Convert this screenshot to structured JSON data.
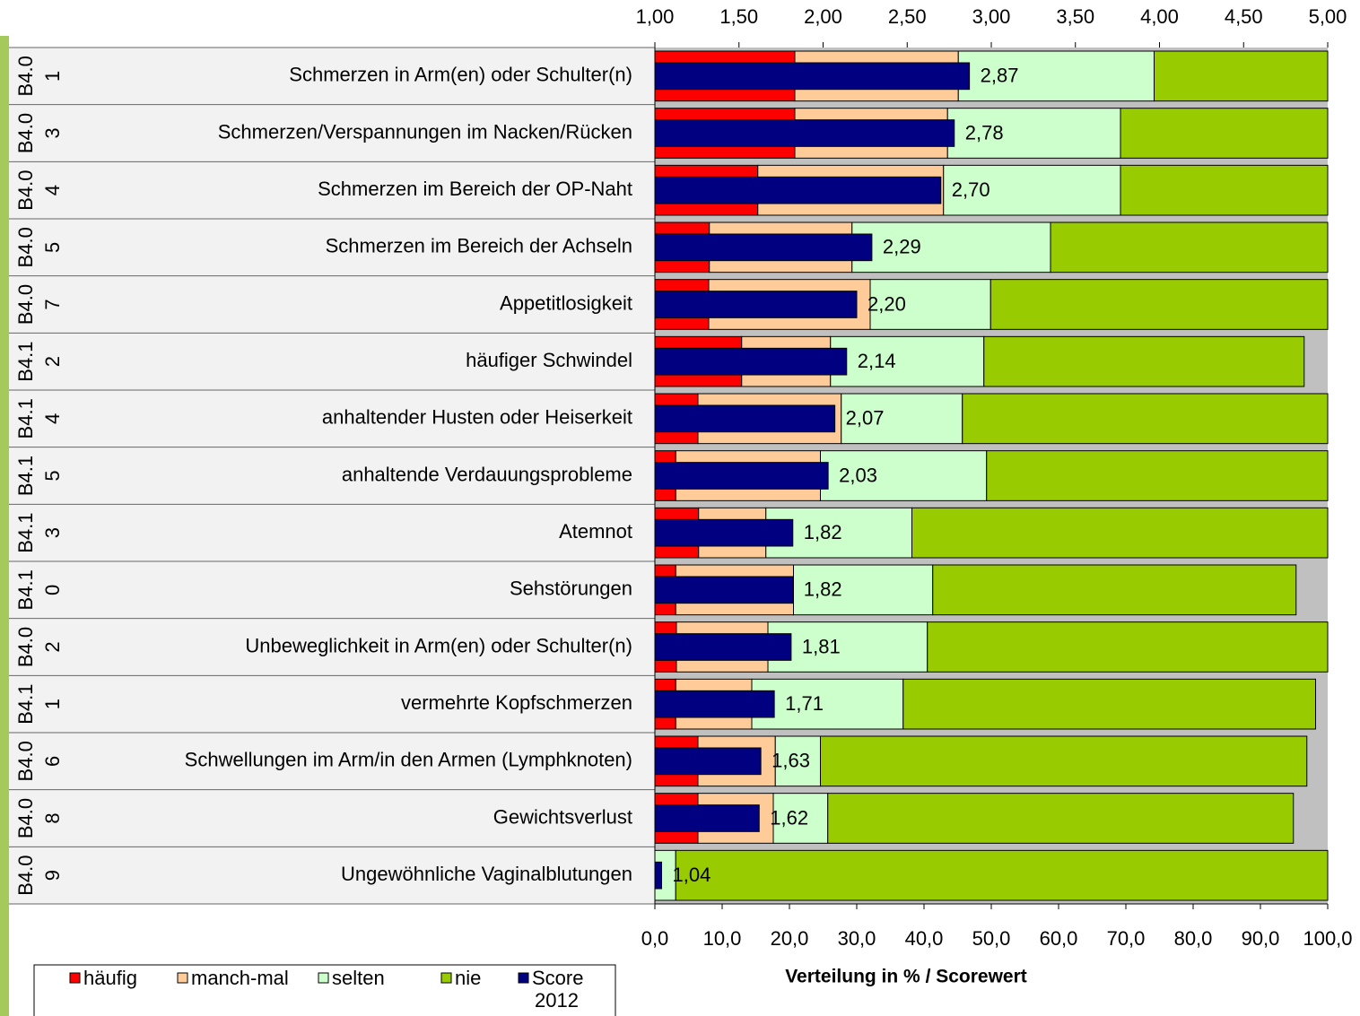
{
  "chart_data": {
    "type": "stacked-barh",
    "xlabel": "Verteilung in % / Scorewert",
    "groups": [
      "B4.0",
      "B4.0",
      "B4.0",
      "B4.0",
      "B4.0",
      "B4.1",
      "B4.1",
      "B4.1",
      "B4.1",
      "B4.1",
      "B4.0",
      "B4.1",
      "B4.0",
      "B4.0",
      "B4.0"
    ],
    "items": [
      "1",
      "3",
      "4",
      "5",
      "7",
      "2",
      "4",
      "5",
      "3",
      "0",
      "2",
      "1",
      "6",
      "8",
      "9"
    ],
    "categories": [
      "Schmerzen in Arm(en) oder Schulter(n)",
      "Schmerzen/Verspannungen im Nacken/Rücken",
      "Schmerzen im Bereich der OP-Naht",
      "Schmerzen im Bereich der Achseln",
      "Appetitlosigkeit",
      "häufiger Schwindel",
      "anhaltender Husten oder Heiserkeit",
      "anhaltende Verdauungsprobleme",
      "Atemnot",
      "Sehstörungen",
      "Unbeweglichkeit in Arm(en) oder Schulter(n)",
      "vermehrte Kopfschmerzen",
      "Schwellungen im Arm/in den Armen (Lymphknoten)",
      "Gewichtsverlust",
      "Ungewöhnliche Vaginalblutungen"
    ],
    "series": [
      {
        "name": "häufig",
        "color": "#ff0000",
        "values": [
          20.8,
          20.8,
          15.3,
          8.1,
          8.0,
          12.9,
          6.4,
          3.1,
          6.5,
          3.1,
          3.2,
          3.1,
          6.4,
          6.4,
          0
        ]
      },
      {
        "name": "manch-mal",
        "color": "#ffcc99",
        "values": [
          24.3,
          22.7,
          27.6,
          21.2,
          24.0,
          13.2,
          21.3,
          21.5,
          10.0,
          17.5,
          13.6,
          11.3,
          11.5,
          11.2,
          0
        ]
      },
      {
        "name": "selten",
        "color": "#ccffcc",
        "values": [
          29.1,
          25.7,
          26.3,
          29.5,
          17.9,
          22.8,
          18.0,
          24.7,
          21.7,
          20.7,
          23.7,
          22.5,
          6.7,
          8.1,
          3.1
        ]
      },
      {
        "name": "nie",
        "color": "#99cc00",
        "values": [
          25.8,
          30.8,
          30.8,
          41.2,
          50.1,
          47.6,
          54.3,
          50.7,
          61.8,
          54.0,
          59.5,
          61.3,
          72.3,
          69.2,
          96.9
        ]
      },
      {
        "name": "Score 2012",
        "color": "#000080",
        "axis": "x2",
        "values": [
          2.87,
          2.78,
          2.7,
          2.29,
          2.2,
          2.14,
          2.07,
          2.03,
          1.82,
          1.82,
          1.81,
          1.71,
          1.63,
          1.62,
          1.04
        ],
        "value_labels": [
          "2,87",
          "2,78",
          "2,70",
          "2,29",
          "2,20",
          "2,14",
          "2,07",
          "2,03",
          "1,82",
          "1,82",
          "1,81",
          "1,71",
          "1,63",
          "1,62",
          "1,04"
        ]
      }
    ],
    "xlim": [
      0,
      100
    ],
    "xticks": [
      {
        "value": 0,
        "label": "0,0"
      },
      {
        "value": 10,
        "label": "10,0"
      },
      {
        "value": 20,
        "label": "20,0"
      },
      {
        "value": 30,
        "label": "30,0"
      },
      {
        "value": 40,
        "label": "40,0"
      },
      {
        "value": 50,
        "label": "50,0"
      },
      {
        "value": 60,
        "label": "60,0"
      },
      {
        "value": 70,
        "label": "70,0"
      },
      {
        "value": 80,
        "label": "80,0"
      },
      {
        "value": 90,
        "label": "90,0"
      },
      {
        "value": 100,
        "label": "100,0"
      }
    ],
    "x2lim": [
      1,
      5
    ],
    "x2ticks": [
      {
        "value": 1,
        "label": "1,00"
      },
      {
        "value": 1.5,
        "label": "1,50"
      },
      {
        "value": 2,
        "label": "2,00"
      },
      {
        "value": 2.5,
        "label": "2,50"
      },
      {
        "value": 3,
        "label": "3,00"
      },
      {
        "value": 3.5,
        "label": "3,50"
      },
      {
        "value": 4,
        "label": "4,00"
      },
      {
        "value": 4.5,
        "label": "4,50"
      },
      {
        "value": 5,
        "label": "5,00"
      }
    ]
  }
}
